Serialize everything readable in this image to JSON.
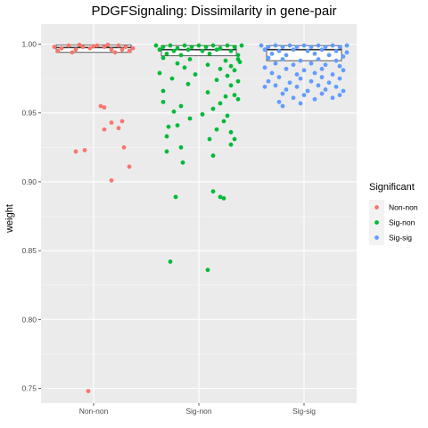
{
  "chart_data": {
    "type": "scatter",
    "subtype": "boxplot-with-jitter",
    "title": "PDGFSignaling: Dissimilarity in gene-pair",
    "xlabel": "",
    "ylabel": "weight",
    "ylim": [
      0.735,
      1.0
    ],
    "yticks": [
      0.75,
      0.8,
      0.85,
      0.9,
      0.95,
      1.0
    ],
    "ytick_labels": [
      "0.75",
      "0.80",
      "0.85",
      "0.90",
      "0.95",
      "1.00"
    ],
    "categories": [
      "Non-non",
      "Sig-non",
      "Sig-sig"
    ],
    "legend": {
      "title": "Significant",
      "position": "right",
      "entries": [
        "Non-non",
        "Sig-non",
        "Sig-sig"
      ]
    },
    "grid": true,
    "colors": {
      "Non-non": "#F8766D",
      "Sig-non": "#00BA38",
      "Sig-sig": "#619CFF",
      "panel": "#EBEBEB",
      "grid_major": "#FFFFFF"
    },
    "boxes": [
      {
        "category": "Non-non",
        "q1": 0.994,
        "median": 0.9975,
        "q3": 0.9995
      },
      {
        "category": "Sig-non",
        "q1": 0.9915,
        "median": 0.996,
        "q3": 0.999
      },
      {
        "category": "Sig-sig",
        "q1": 0.988,
        "median": 0.996,
        "q3": 0.999
      }
    ],
    "series": [
      {
        "name": "Non-non",
        "points": [
          [
            -0.22,
            0.998
          ],
          [
            -0.18,
            0.997
          ],
          [
            -0.14,
            0.999
          ],
          [
            -0.1,
            0.996
          ],
          [
            -0.06,
            0.998
          ],
          [
            -0.02,
            0.997
          ],
          [
            0.02,
            0.999
          ],
          [
            0.06,
            0.998
          ],
          [
            0.1,
            0.996
          ],
          [
            0.14,
            0.999
          ],
          [
            0.18,
            0.998
          ],
          [
            0.22,
            0.997
          ],
          [
            -0.2,
            0.995
          ],
          [
            -0.12,
            0.994
          ],
          [
            0.0,
            0.9985
          ],
          [
            0.12,
            0.994
          ],
          [
            0.2,
            0.995
          ],
          [
            -0.08,
            0.9995
          ],
          [
            0.08,
            0.9995
          ],
          [
            0.16,
            0.996
          ],
          [
            0.04,
            0.955
          ],
          [
            0.06,
            0.954
          ],
          [
            0.1,
            0.943
          ],
          [
            0.16,
            0.944
          ],
          [
            0.06,
            0.938
          ],
          [
            0.14,
            0.939
          ],
          [
            -0.1,
            0.922
          ],
          [
            -0.05,
            0.923
          ],
          [
            0.17,
            0.925
          ],
          [
            0.2,
            0.911
          ],
          [
            0.1,
            0.901
          ],
          [
            -0.03,
            0.748
          ]
        ]
      },
      {
        "name": "Sig-non",
        "points": [
          [
            -0.24,
            0.999
          ],
          [
            -0.2,
            0.998
          ],
          [
            -0.16,
            0.999
          ],
          [
            -0.12,
            0.997
          ],
          [
            -0.08,
            0.999
          ],
          [
            -0.04,
            0.998
          ],
          [
            0.0,
            0.999
          ],
          [
            0.04,
            0.998
          ],
          [
            0.08,
            0.999
          ],
          [
            0.12,
            0.997
          ],
          [
            0.16,
            0.999
          ],
          [
            0.2,
            0.998
          ],
          [
            0.24,
            0.999
          ],
          [
            -0.22,
            0.996
          ],
          [
            -0.14,
            0.995
          ],
          [
            -0.06,
            0.996
          ],
          [
            0.02,
            0.995
          ],
          [
            0.1,
            0.996
          ],
          [
            0.18,
            0.995
          ],
          [
            -0.18,
            0.993
          ],
          [
            -0.1,
            0.992
          ],
          [
            0.06,
            0.993
          ],
          [
            0.22,
            0.992
          ],
          [
            -0.2,
            0.99
          ],
          [
            -0.05,
            0.989
          ],
          [
            0.15,
            0.988
          ],
          [
            0.22,
            0.989
          ],
          [
            -0.12,
            0.986
          ],
          [
            0.05,
            0.985
          ],
          [
            0.18,
            0.984
          ],
          [
            0.23,
            0.987
          ],
          [
            -0.08,
            0.983
          ],
          [
            0.12,
            0.982
          ],
          [
            0.2,
            0.981
          ],
          [
            -0.22,
            0.979
          ],
          [
            -0.02,
            0.978
          ],
          [
            0.16,
            0.977
          ],
          [
            -0.15,
            0.975
          ],
          [
            0.1,
            0.974
          ],
          [
            0.22,
            0.973
          ],
          [
            -0.06,
            0.971
          ],
          [
            0.18,
            0.97
          ],
          [
            -0.2,
            0.966
          ],
          [
            0.05,
            0.965
          ],
          [
            0.15,
            0.962
          ],
          [
            0.2,
            0.963
          ],
          [
            -0.2,
            0.958
          ],
          [
            0.12,
            0.957
          ],
          [
            0.22,
            0.96
          ],
          [
            -0.1,
            0.955
          ],
          [
            0.08,
            0.953
          ],
          [
            -0.14,
            0.951
          ],
          [
            0.02,
            0.949
          ],
          [
            0.16,
            0.948
          ],
          [
            -0.05,
            0.946
          ],
          [
            0.14,
            0.944
          ],
          [
            -0.12,
            0.941
          ],
          [
            -0.17,
            0.94
          ],
          [
            0.1,
            0.938
          ],
          [
            0.18,
            0.936
          ],
          [
            -0.18,
            0.933
          ],
          [
            0.06,
            0.931
          ],
          [
            0.18,
            0.927
          ],
          [
            0.2,
            0.931
          ],
          [
            -0.1,
            0.925
          ],
          [
            -0.18,
            0.922
          ],
          [
            0.08,
            0.919
          ],
          [
            -0.09,
            0.914
          ],
          [
            -0.13,
            0.889
          ],
          [
            0.08,
            0.893
          ],
          [
            0.12,
            0.889
          ],
          [
            0.14,
            0.888
          ],
          [
            -0.16,
            0.842
          ],
          [
            0.05,
            0.836
          ]
        ]
      },
      {
        "name": "Sig-sig",
        "points": [
          [
            -0.24,
            0.999
          ],
          [
            -0.2,
            0.998
          ],
          [
            -0.16,
            0.999
          ],
          [
            -0.12,
            0.998
          ],
          [
            -0.08,
            0.999
          ],
          [
            -0.04,
            0.998
          ],
          [
            0.0,
            0.999
          ],
          [
            0.04,
            0.998
          ],
          [
            0.08,
            0.999
          ],
          [
            0.12,
            0.998
          ],
          [
            0.16,
            0.999
          ],
          [
            0.2,
            0.998
          ],
          [
            0.24,
            0.999
          ],
          [
            -0.22,
            0.996
          ],
          [
            -0.14,
            0.995
          ],
          [
            -0.06,
            0.996
          ],
          [
            0.02,
            0.995
          ],
          [
            0.1,
            0.996
          ],
          [
            0.18,
            0.995
          ],
          [
            0.24,
            0.994
          ],
          [
            -0.18,
            0.993
          ],
          [
            -0.1,
            0.992
          ],
          [
            0.06,
            0.993
          ],
          [
            0.14,
            0.992
          ],
          [
            0.22,
            0.991
          ],
          [
            -0.2,
            0.99
          ],
          [
            -0.12,
            0.989
          ],
          [
            -0.02,
            0.988
          ],
          [
            0.08,
            0.989
          ],
          [
            0.18,
            0.988
          ],
          [
            -0.16,
            0.986
          ],
          [
            -0.06,
            0.985
          ],
          [
            0.04,
            0.986
          ],
          [
            0.12,
            0.985
          ],
          [
            0.2,
            0.984
          ],
          [
            -0.22,
            0.983
          ],
          [
            -0.1,
            0.982
          ],
          [
            0.0,
            0.981
          ],
          [
            0.1,
            0.982
          ],
          [
            0.22,
            0.981
          ],
          [
            -0.18,
            0.979
          ],
          [
            -0.04,
            0.978
          ],
          [
            0.06,
            0.979
          ],
          [
            0.16,
            0.978
          ],
          [
            -0.14,
            0.976
          ],
          [
            -0.02,
            0.975
          ],
          [
            0.1,
            0.976
          ],
          [
            0.2,
            0.975
          ],
          [
            -0.2,
            0.973
          ],
          [
            -0.08,
            0.972
          ],
          [
            0.04,
            0.973
          ],
          [
            0.14,
            0.972
          ],
          [
            -0.16,
            0.97
          ],
          [
            -0.04,
            0.969
          ],
          [
            0.08,
            0.97
          ],
          [
            0.18,
            0.969
          ],
          [
            -0.1,
            0.967
          ],
          [
            0.02,
            0.966
          ],
          [
            0.12,
            0.967
          ],
          [
            0.22,
            0.966
          ],
          [
            -0.22,
            0.969
          ],
          [
            -0.12,
            0.964
          ],
          [
            0.0,
            0.963
          ],
          [
            0.1,
            0.964
          ],
          [
            0.2,
            0.963
          ],
          [
            -0.06,
            0.961
          ],
          [
            0.06,
            0.96
          ],
          [
            0.16,
            0.961
          ],
          [
            -0.14,
            0.958
          ],
          [
            -0.02,
            0.957
          ],
          [
            -0.12,
            0.955
          ]
        ]
      }
    ]
  }
}
